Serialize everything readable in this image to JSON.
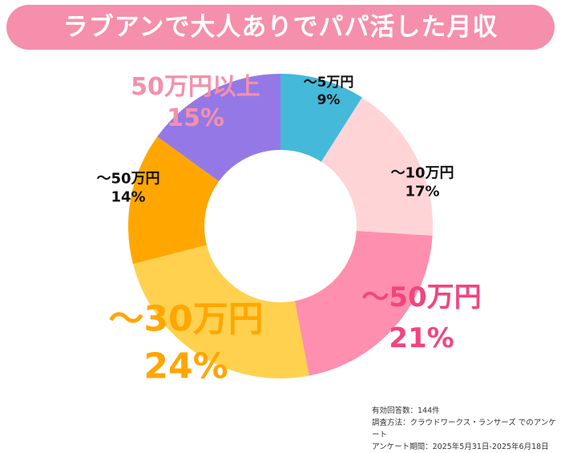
{
  "title": "ラブアンで大人ありでパパ活した月収",
  "chart_data": {
    "type": "pie",
    "title": "ラブアンで大人ありでパパ活した月収",
    "categories": [
      "〜5万円",
      "〜10万円",
      "〜50万円",
      "〜30万円",
      "〜50万円",
      "50万円以上"
    ],
    "values": [
      9,
      17,
      21,
      24,
      14,
      15
    ],
    "labels": [
      "9%",
      "17%",
      "21%",
      "24%",
      "14%",
      "15%"
    ],
    "colors": [
      "#45b9d9",
      "#ffd4d7",
      "#ff8fae",
      "#ffd14f",
      "#ffa600",
      "#9479e6"
    ],
    "donut": true
  },
  "footer": [
    "有効回答数：144件",
    "調査方法：クラウドワークス・ランサーズ でのアンケート",
    "アンケート期間：2025年5月31日-2025年6月18日"
  ]
}
